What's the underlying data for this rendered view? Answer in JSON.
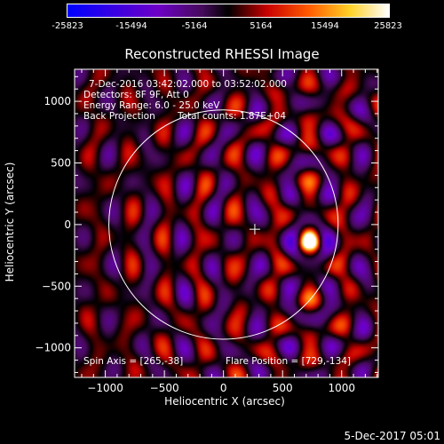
{
  "colorbar": {
    "ticks": [
      "-25823",
      "-15494",
      "-5164",
      "5164",
      "15494",
      "25823"
    ]
  },
  "chart_data": {
    "type": "heatmap",
    "title": "Reconstructed RHESSI Image",
    "xlabel": "Heliocentric X (arcsec)",
    "ylabel": "Heliocentric Y (arcsec)",
    "xlim": [
      -1260,
      1310
    ],
    "ylim": [
      -1240,
      1260
    ],
    "x_ticks": [
      -1000,
      -500,
      0,
      500,
      1000
    ],
    "x_tick_labels": [
      "−1000",
      "−500",
      "0",
      "500",
      "1000"
    ],
    "y_ticks": [
      1000,
      500,
      0,
      -500,
      -1000
    ],
    "y_tick_labels": [
      "1000",
      "500",
      "0",
      "−500",
      "−1000"
    ],
    "colorscale": {
      "min": -25823,
      "max": 25823
    },
    "peak": {
      "x": 729,
      "y": -134
    },
    "spin_axis": {
      "x": 265,
      "y": -38
    },
    "solar_disk_radius_arcsec": 970,
    "annotations": {
      "time_range": "7-Dec-2016 03:42:02.000 to 03:52:02.000",
      "detectors": "Detectors: 8F 9F, Att 0",
      "energy": "Energy Range: 6.0 - 25.0 keV",
      "method": "Back Projection",
      "counts": "Total counts: 1.87E+04",
      "spin_axis_label": "Spin Axis = [265,-38]",
      "flare_position_label": "Flare Position = [729,-134]"
    }
  },
  "footer": {
    "date": "5-Dec-2017 05:01"
  }
}
